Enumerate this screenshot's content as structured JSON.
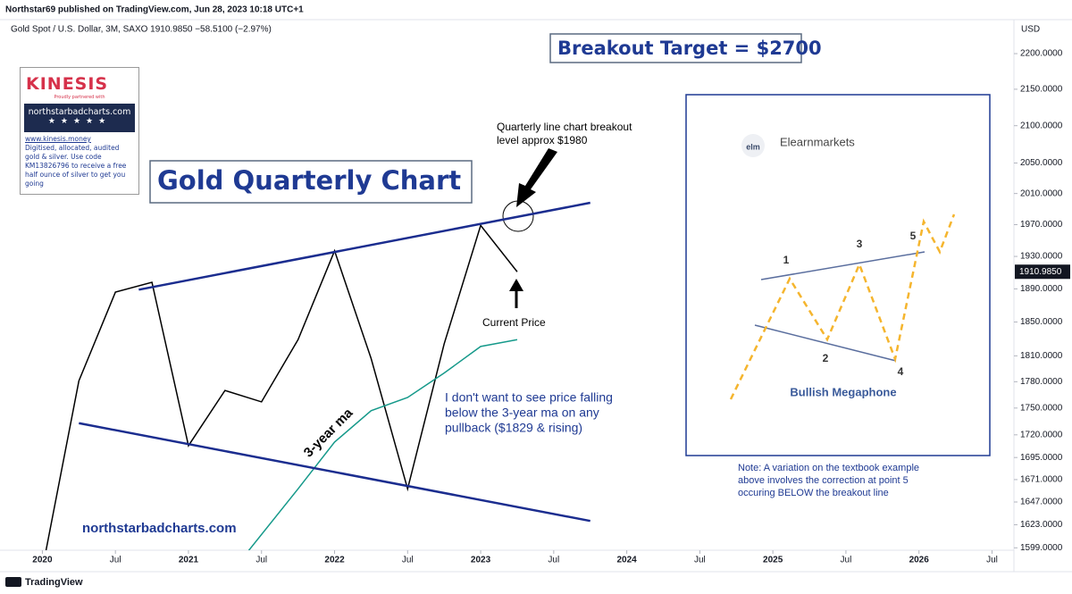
{
  "header": {
    "publisher": "Northstar69 published on TradingView.com, Jun 28, 2023 10:18 UTC+1",
    "symbol": "Gold Spot / U.S. Dollar, 3M, SAXO  1910.9850  −58.5100 (−2.97%)",
    "currency": "USD",
    "footer": "TradingView"
  },
  "kinesis": {
    "brand": "KINESIS",
    "tagline": "Proudly partnered with",
    "partner": "northstarbadcharts.com",
    "url": "www.kinesis.money",
    "text": "Digitised, allocated, audited gold & silver. Use code KM13826796 to receive a free half ounce of silver to get you going"
  },
  "inset": {
    "brand": "Elearnmarkets",
    "logo": "elm",
    "points": [
      "1",
      "2",
      "3",
      "4",
      "5"
    ],
    "caption": "Bullish Megaphone"
  },
  "chart_data": {
    "type": "line",
    "log_scale": true,
    "grid": false,
    "annotations": {
      "target": "Breakout Target = $2700",
      "title": "Gold Quarterly Chart",
      "breakout": [
        "Quarterly line chart breakout",
        "level approx $1980"
      ],
      "current": "Current Price",
      "warning": [
        "I don't want to see price falling",
        "below the 3-year ma on any",
        "pullback ($1829 & rising)"
      ],
      "ma": "3-year ma",
      "site": "northstarbadcharts.com",
      "note": [
        "Note: A variation on the textbook example",
        "above involves the correction at point 5",
        "occuring BELOW the breakout line"
      ]
    },
    "xlim": [
      2019.71,
      2026.65
    ],
    "xticks": [
      {
        "value": 2020,
        "label": "2020"
      },
      {
        "value": 2020.5,
        "label": "Jul"
      },
      {
        "value": 2021,
        "label": "2021"
      },
      {
        "value": 2021.5,
        "label": "Jul"
      },
      {
        "value": 2022,
        "label": "2022"
      },
      {
        "value": 2022.5,
        "label": "Jul"
      },
      {
        "value": 2023,
        "label": "2023"
      },
      {
        "value": 2023.5,
        "label": "Jul"
      },
      {
        "value": 2024,
        "label": "2024"
      },
      {
        "value": 2024.5,
        "label": "Jul"
      },
      {
        "value": 2025,
        "label": "2025"
      },
      {
        "value": 2025.5,
        "label": "Jul"
      },
      {
        "value": 2026,
        "label": "2026"
      },
      {
        "value": 2026.5,
        "label": "Jul"
      }
    ],
    "ylim": [
      1596.5,
      2248.8
    ],
    "yticks": [
      {
        "value": 2200,
        "label": "2200.0000"
      },
      {
        "value": 2150,
        "label": "2150.0000"
      },
      {
        "value": 2100,
        "label": "2100.0000"
      },
      {
        "value": 2050,
        "label": "2050.0000"
      },
      {
        "value": 2010,
        "label": "2010.0000"
      },
      {
        "value": 1970,
        "label": "1970.0000"
      },
      {
        "value": 1930,
        "label": "1930.0000"
      },
      {
        "value": 1890,
        "label": "1890.0000"
      },
      {
        "value": 1850,
        "label": "1850.0000"
      },
      {
        "value": 1810,
        "label": "1810.0000"
      },
      {
        "value": 1780,
        "label": "1780.0000"
      },
      {
        "value": 1750,
        "label": "1750.0000"
      },
      {
        "value": 1720,
        "label": "1720.0000"
      },
      {
        "value": 1695,
        "label": "1695.0000"
      },
      {
        "value": 1671,
        "label": "1671.0000"
      },
      {
        "value": 1647,
        "label": "1647.0000"
      },
      {
        "value": 1623,
        "label": "1623.0000"
      },
      {
        "value": 1599,
        "label": "1599.0000"
      }
    ],
    "series": [
      {
        "color": "#000000",
        "x": [
          2020,
          2020.25,
          2020.5,
          2020.75,
          2021,
          2021.25,
          2021.5,
          2021.75,
          2022,
          2022.25,
          2022.5,
          2022.75,
          2023,
          2023.25
        ],
        "values": [
          1577,
          1781,
          1886,
          1898,
          1708,
          1770,
          1757,
          1829,
          1937,
          1807,
          1661,
          1824,
          1969,
          1910.985
        ]
      },
      {
        "color": "#15998a",
        "x": [
          2021.25,
          2021.75,
          2022,
          2022.25,
          2022.5,
          2022.75,
          2023,
          2023.25
        ],
        "values": [
          1566,
          1661,
          1712,
          1747,
          1762,
          1790,
          1821,
          1829
        ]
      }
    ],
    "price_tag": "1910.9850",
    "trendlines": [
      {
        "color": "#1b2d8f",
        "x": [
          2020.66,
          2023.75
        ],
        "values": [
          1889,
          1998
        ]
      },
      {
        "color": "#1b2d8f",
        "x": [
          2020.25,
          2023.75
        ],
        "values": [
          1733,
          1627
        ]
      }
    ]
  }
}
